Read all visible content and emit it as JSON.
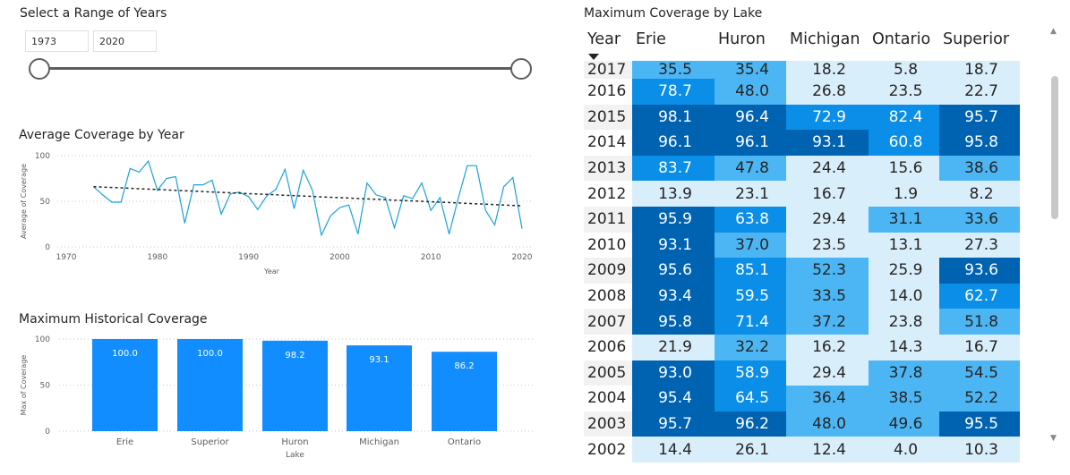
{
  "slicer": {
    "title": "Select a Range of Years",
    "start_year": "1973",
    "end_year": "2020"
  },
  "line_chart": {
    "title": "Average Coverage by Year",
    "chart_data": {
      "type": "line",
      "xlabel": "Year",
      "ylabel": "Average of Coverage",
      "xticks": [
        1970,
        1980,
        1990,
        2000,
        2010,
        2020
      ],
      "yticks": [
        0,
        50,
        100
      ],
      "xlim": [
        1970,
        2020
      ],
      "ylim": [
        0,
        100
      ],
      "x": [
        1973,
        1974,
        1975,
        1976,
        1977,
        1978,
        1979,
        1980,
        1981,
        1982,
        1983,
        1984,
        1985,
        1986,
        1987,
        1988,
        1989,
        1990,
        1991,
        1992,
        1993,
        1994,
        1995,
        1996,
        1997,
        1998,
        1999,
        2000,
        2001,
        2002,
        2003,
        2004,
        2005,
        2006,
        2007,
        2008,
        2009,
        2010,
        2011,
        2012,
        2013,
        2014,
        2015,
        2016,
        2017,
        2018,
        2019,
        2020
      ],
      "values": [
        66,
        57,
        49,
        49,
        86,
        82,
        94,
        62,
        75,
        77,
        26,
        68,
        68,
        73,
        36,
        58,
        60,
        55,
        41,
        56,
        63,
        85,
        42,
        84,
        62,
        13,
        34,
        43,
        46,
        14,
        70,
        57,
        54,
        21,
        56,
        53,
        70,
        40,
        54,
        14,
        53,
        89,
        89,
        40,
        24,
        66,
        76,
        20
      ],
      "trend": {
        "start": [
          1973,
          66
        ],
        "end": [
          2020,
          45
        ]
      },
      "line_color": "#1aa3d9",
      "trend_color": "#252423"
    }
  },
  "bar_chart": {
    "title": "Maximum Historical Coverage",
    "chart_data": {
      "type": "bar",
      "xlabel": "Lake",
      "ylabel": "Max of Coverage",
      "categories": [
        "Erie",
        "Superior",
        "Huron",
        "Michigan",
        "Ontario"
      ],
      "values": [
        100.0,
        100.0,
        98.2,
        93.1,
        86.2
      ],
      "labels": [
        "100.0",
        "100.0",
        "98.2",
        "93.1",
        "86.2"
      ],
      "yticks": [
        0,
        50,
        100
      ],
      "ylim": [
        0,
        100
      ],
      "bar_color": "#118dff"
    }
  },
  "matrix": {
    "title": "Maximum Coverage by Lake",
    "columns": [
      "Year",
      "Erie",
      "Huron",
      "Michigan",
      "Ontario",
      "Superior"
    ],
    "rows": [
      {
        "year": "2017",
        "values": [
          "35.5",
          "35.4",
          "18.2",
          "5.8",
          "18.7"
        ]
      },
      {
        "year": "2016",
        "values": [
          "78.7",
          "48.0",
          "26.8",
          "23.5",
          "22.7"
        ]
      },
      {
        "year": "2015",
        "values": [
          "98.1",
          "96.4",
          "72.9",
          "82.4",
          "95.7"
        ]
      },
      {
        "year": "2014",
        "values": [
          "96.1",
          "96.1",
          "93.1",
          "60.8",
          "95.8"
        ]
      },
      {
        "year": "2013",
        "values": [
          "83.7",
          "47.8",
          "24.4",
          "15.6",
          "38.6"
        ]
      },
      {
        "year": "2012",
        "values": [
          "13.9",
          "23.1",
          "16.7",
          "1.9",
          "8.2"
        ]
      },
      {
        "year": "2011",
        "values": [
          "95.9",
          "63.8",
          "29.4",
          "31.1",
          "33.6"
        ]
      },
      {
        "year": "2010",
        "values": [
          "93.1",
          "37.0",
          "23.5",
          "13.1",
          "27.3"
        ]
      },
      {
        "year": "2009",
        "values": [
          "95.6",
          "85.1",
          "52.3",
          "25.9",
          "93.6"
        ]
      },
      {
        "year": "2008",
        "values": [
          "93.4",
          "59.5",
          "33.5",
          "14.0",
          "62.7"
        ]
      },
      {
        "year": "2007",
        "values": [
          "95.8",
          "71.4",
          "37.2",
          "23.8",
          "51.8"
        ]
      },
      {
        "year": "2006",
        "values": [
          "21.9",
          "32.2",
          "16.2",
          "14.3",
          "16.7"
        ]
      },
      {
        "year": "2005",
        "values": [
          "93.0",
          "58.9",
          "29.4",
          "37.8",
          "54.5"
        ]
      },
      {
        "year": "2004",
        "values": [
          "95.4",
          "64.5",
          "36.4",
          "38.5",
          "52.2"
        ]
      },
      {
        "year": "2003",
        "values": [
          "95.7",
          "96.2",
          "48.0",
          "49.6",
          "95.5"
        ]
      },
      {
        "year": "2002",
        "values": [
          "14.4",
          "26.1",
          "12.4",
          "4.0",
          "10.3"
        ]
      }
    ],
    "colors": {
      "dark": "#0063b1",
      "mid": "#0a8ee8",
      "light": "#4cb6f5",
      "pale": "#d9eefb"
    }
  },
  "scrollbar": {
    "up_icon": "▲",
    "down_icon": "▼"
  }
}
